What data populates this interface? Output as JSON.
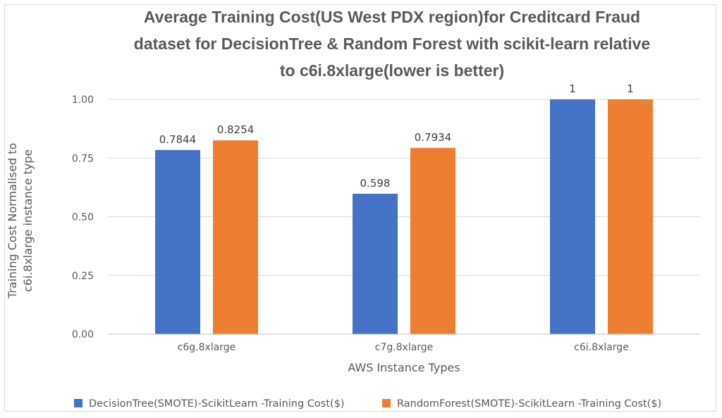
{
  "chart_data": {
    "type": "bar",
    "title_lines": [
      "Average Training Cost(US West PDX region)for Creditcard Fraud",
      "dataset for DecisionTree & Random Forest with scikit-learn relative",
      "to c6i.8xlarge(lower is better)"
    ],
    "xlabel": "AWS Instance Types",
    "ylabel_lines": [
      "Training Cost Normalised to",
      "c6i.8xlarge instance type"
    ],
    "ylim": [
      0,
      1.0
    ],
    "yticks": [
      "0.00",
      "0.25",
      "0.50",
      "0.75",
      "1.00"
    ],
    "ytick_values": [
      0,
      0.25,
      0.5,
      0.75,
      1.0
    ],
    "grid": true,
    "legend_position": "bottom",
    "categories": [
      "c6g.8xlarge",
      "c7g.8xlarge",
      "c6i.8xlarge"
    ],
    "series": [
      {
        "name": "DecisionTree(SMOTE)-ScikitLearn -Training Cost($)",
        "color": "#4472c4",
        "values": [
          0.7844,
          0.598,
          1
        ],
        "labels": [
          "0.7844",
          "0.598",
          "1"
        ]
      },
      {
        "name": "RandomForest(SMOTE)-ScikitLearn -Training Cost($)",
        "color": "#ed7d31",
        "values": [
          0.8254,
          0.7934,
          1
        ],
        "labels": [
          "0.8254",
          "0.7934",
          "1"
        ]
      }
    ]
  }
}
